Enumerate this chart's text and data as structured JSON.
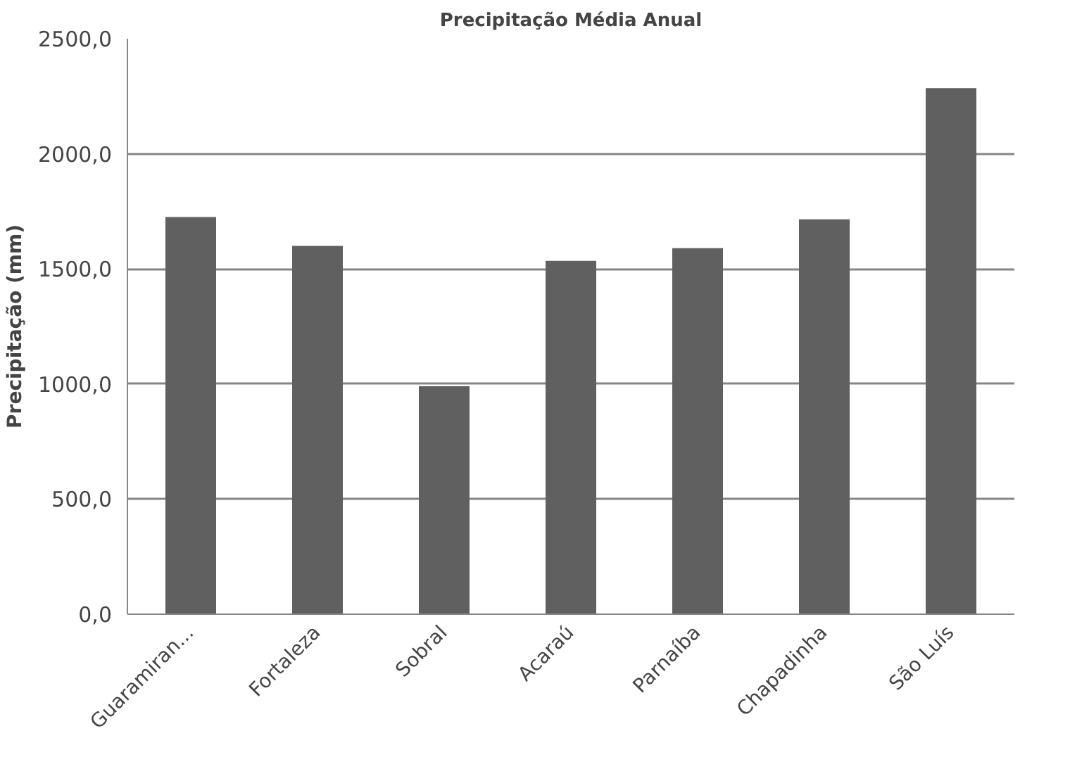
{
  "chart_data": {
    "type": "bar",
    "title": "Precipitação Média Anual",
    "ylabel": "Precipitação (mm)",
    "categories": [
      "Guaramiran...",
      "Fortaleza",
      "Sobral",
      "Acaraú",
      "Parnaíba",
      "Chapadinha",
      "São Luís"
    ],
    "values": [
      1725,
      1600,
      990,
      1535,
      1590,
      1715,
      2285
    ],
    "color": "#606060",
    "ylim": [
      0,
      2500
    ],
    "yticks": [
      {
        "value": 0,
        "label": "0,0"
      },
      {
        "value": 500,
        "label": "500,0"
      },
      {
        "value": 1000,
        "label": "1000,0"
      },
      {
        "value": 1500,
        "label": "1500,0"
      },
      {
        "value": 2000,
        "label": "2000,0"
      },
      {
        "value": 2500,
        "label": "2500,0"
      }
    ],
    "grid": "y"
  }
}
